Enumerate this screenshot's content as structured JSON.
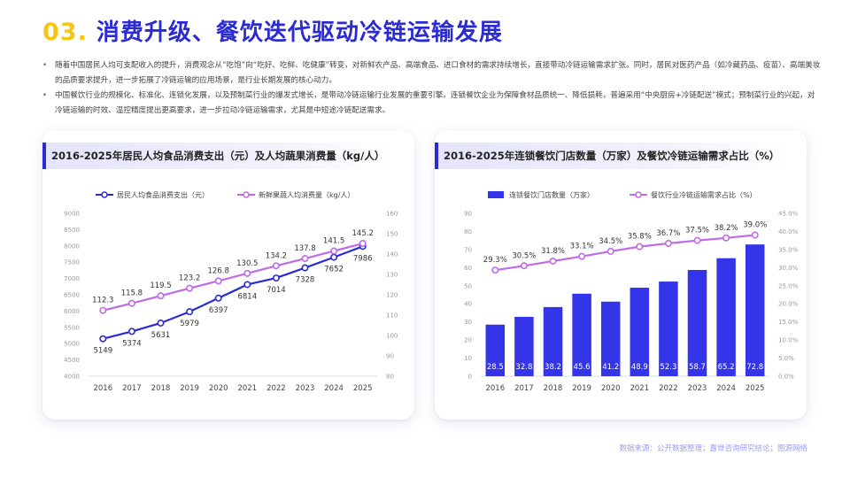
{
  "header": {
    "number": "03.",
    "title": "消费升级、餐饮迭代驱动冷链运输发展"
  },
  "bullets": [
    "随着中国居民人均可支配收入的提升，消费观念从“吃饱”向“吃好、吃鲜、吃健康”转变，对新鲜农产品、高端食品、进口食材的需求持续增长，直接带动冷链运输需求扩张。同时，居民对医药产品（如冷藏药品、疫苗）、高端美妆的品质要求提升，进一步拓展了冷链运输的应用场景，是行业长期发展的核心动力。",
    "中国餐饮行业的规模化、标准化、连锁化发展，以及预制菜行业的爆发式增长，是带动冷链运输行业发展的重要引擎。连锁餐饮企业为保障食材品质统一、降低损耗，普遍采用“中央厨房+冷链配送”模式；预制菜行业的兴起，对冷链运输的时效、温控精度提出更高要求，进一步拉动冷链运输需求，尤其是中短途冷链配送需求。"
  ],
  "chart_data": [
    {
      "type": "line",
      "title": "2016-2025年居民人均食品消费支出（元）及人均蔬果消费量（kg/人）",
      "x": [
        "2016",
        "2017",
        "2018",
        "2019",
        "2020",
        "2021",
        "2022",
        "2023",
        "2024",
        "2025"
      ],
      "series": [
        {
          "name": "居民人均食品消费支出（元）",
          "axis": "left",
          "color": "#2b2bd6",
          "values": [
            5149,
            5374,
            5631,
            5979,
            6397,
            6814,
            7014,
            7328,
            7652,
            7986
          ]
        },
        {
          "name": "新鲜果蔬人均消费量（kg/人）",
          "axis": "right",
          "color": "#c06ae8",
          "values": [
            112.3,
            115.8,
            119.5,
            123.2,
            126.8,
            130.5,
            134.2,
            137.8,
            141.5,
            145.2
          ]
        }
      ],
      "ylim_left": [
        4000,
        9000
      ],
      "yticks_left": [
        "4000",
        "4500",
        "5000",
        "5500",
        "6000",
        "6500",
        "7000",
        "7500",
        "8000",
        "8500",
        "9000"
      ],
      "ylim_right": [
        80,
        160
      ],
      "yticks_right": [
        "80",
        "90",
        "100",
        "110",
        "120",
        "130",
        "140",
        "150",
        "160"
      ],
      "legend": "top"
    },
    {
      "type": "bar",
      "title": "2016-2025年连锁餐饮门店数量（万家）及餐饮冷链运输需求占比（%）",
      "x": [
        "2016",
        "2017",
        "2018",
        "2019",
        "2020",
        "2021",
        "2022",
        "2023",
        "2024",
        "2025"
      ],
      "series": [
        {
          "name": "连锁餐饮门店数量（万家）",
          "axis": "left",
          "type": "bar",
          "color": "#3434e8",
          "values": [
            28.5,
            32.8,
            38.2,
            45.6,
            41.2,
            48.9,
            52.3,
            58.7,
            65.2,
            72.8
          ],
          "labels": [
            "28.5",
            "32.8",
            "38.2",
            "45.6",
            "41.2",
            "48.9",
            "52.3",
            "58.7",
            "65.2",
            "72.8"
          ]
        },
        {
          "name": "餐饮行业冷链运输需求占比（%）",
          "axis": "right",
          "type": "line",
          "color": "#c06ae8",
          "values": [
            29.3,
            30.5,
            31.8,
            33.1,
            34.5,
            35.8,
            36.7,
            37.5,
            38.2,
            39.0
          ],
          "labels": [
            "29.3%",
            "30.5%",
            "31.8%",
            "33.1%",
            "34.5%",
            "35.8%",
            "36.7%",
            "37.5%",
            "38.2%",
            "39.0%"
          ]
        }
      ],
      "ylim_left": [
        0,
        90
      ],
      "yticks_left": [
        "0",
        "10",
        "20",
        "30",
        "40",
        "50",
        "60",
        "70",
        "80",
        "90"
      ],
      "ylim_right": [
        0,
        45
      ],
      "yticks_right": [
        "0.0%",
        "5.0%",
        "10.0%",
        "15.0%",
        "20.0%",
        "25.0%",
        "30.0%",
        "35.0%",
        "40.0%",
        "45.0%"
      ],
      "legend": "top"
    }
  ],
  "footer": {
    "source": "数据来源：公开数据整理；嘉世咨询研究结论；图源网络"
  }
}
